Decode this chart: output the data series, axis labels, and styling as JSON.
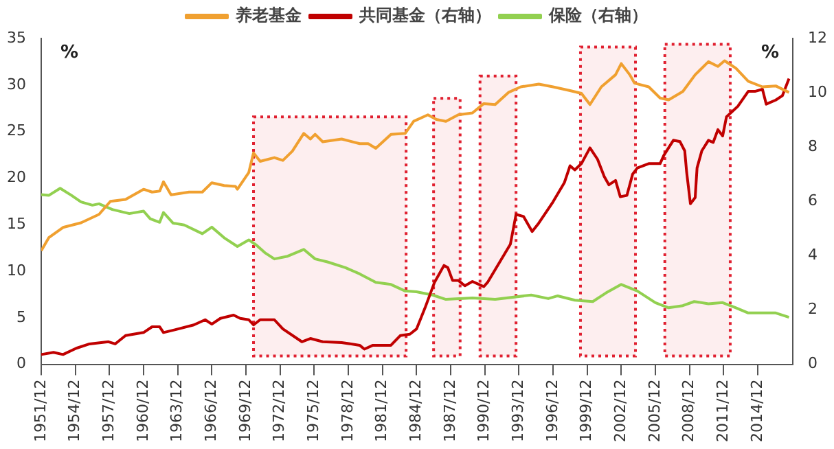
{
  "chart_data": {
    "type": "line",
    "ylabel": "%",
    "y2label": "%",
    "legend": "top",
    "grid": false,
    "marker": "none",
    "line_style": "solid",
    "xlim": [
      "1951-12",
      "2018-01"
    ],
    "xticks": [
      {
        "value": "1951-12",
        "label": "1951/12"
      },
      {
        "value": "1954-12",
        "label": "1954/12"
      },
      {
        "value": "1957-12",
        "label": "1957/12"
      },
      {
        "value": "1960-12",
        "label": "1960/12"
      },
      {
        "value": "1963-12",
        "label": "1963/12"
      },
      {
        "value": "1966-12",
        "label": "1966/12"
      },
      {
        "value": "1969-12",
        "label": "1969/12"
      },
      {
        "value": "1972-12",
        "label": "1972/12"
      },
      {
        "value": "1975-12",
        "label": "1975/12"
      },
      {
        "value": "1978-12",
        "label": "1978/12"
      },
      {
        "value": "1981-12",
        "label": "1981/12"
      },
      {
        "value": "1984-12",
        "label": "1984/12"
      },
      {
        "value": "1987-12",
        "label": "1987/12"
      },
      {
        "value": "1990-12",
        "label": "1990/12"
      },
      {
        "value": "1993-12",
        "label": "1993/12"
      },
      {
        "value": "1996-12",
        "label": "1996/12"
      },
      {
        "value": "1999-12",
        "label": "1999/12"
      },
      {
        "value": "2002-12",
        "label": "2002/12"
      },
      {
        "value": "2005-12",
        "label": "2005/12"
      },
      {
        "value": "2008-12",
        "label": "2008/12"
      },
      {
        "value": "2011-12",
        "label": "2011/12"
      },
      {
        "value": "2014-12",
        "label": "2014/12"
      }
    ],
    "ylim": [
      0,
      35
    ],
    "yticks": [
      0,
      5,
      10,
      15,
      20,
      25,
      30,
      35
    ],
    "y2lim": [
      0,
      12
    ],
    "y2ticks": [
      0,
      2,
      4,
      6,
      8,
      10,
      12
    ],
    "series": [
      {
        "name": "养老基金",
        "color": "#f0a030",
        "x": [
          "1951-12",
          "1952-08",
          "1953-11",
          "1955-06",
          "1957-01",
          "1958-01",
          "1959-05",
          "1960-12",
          "1961-09",
          "1962-05",
          "1962-09",
          "1963-05",
          "1964-12",
          "1966-02",
          "1966-12",
          "1968-01",
          "1969-01",
          "1969-03",
          "1970-03",
          "1970-08",
          "1971-03",
          "1972-06",
          "1973-03",
          "1974-01",
          "1975-01",
          "1975-08",
          "1976-01",
          "1976-09",
          "1978-05",
          "1979-12",
          "1980-09",
          "1981-05",
          "1982-09",
          "1983-12",
          "1984-09",
          "1985-12",
          "1986-09",
          "1987-07",
          "1988-08",
          "1989-11",
          "1990-11",
          "1991-11",
          "1993-01",
          "1994-02",
          "1995-09",
          "1996-12",
          "1998-06",
          "1999-06",
          "2000-03",
          "2001-03",
          "2002-06",
          "2002-12",
          "2003-09",
          "2004-02",
          "2005-05",
          "2006-05",
          "2007-02",
          "2008-05",
          "2009-06",
          "2010-08",
          "2011-06",
          "2012-01",
          "2013-01",
          "2014-02",
          "2015-05",
          "2016-07",
          "2017-09"
        ],
        "values": [
          12.2,
          13.6,
          14.7,
          15.2,
          16.1,
          17.5,
          17.7,
          18.8,
          18.5,
          18.6,
          19.6,
          18.2,
          18.5,
          18.5,
          19.5,
          19.2,
          19.1,
          18.8,
          20.6,
          22.7,
          21.8,
          22.2,
          21.9,
          22.9,
          24.8,
          24.2,
          24.7,
          23.9,
          24.2,
          23.7,
          23.7,
          23.2,
          24.7,
          24.8,
          26.1,
          26.8,
          26.3,
          26.1,
          26.8,
          27.0,
          28.0,
          27.9,
          29.2,
          29.8,
          30.1,
          29.8,
          29.4,
          29.1,
          27.9,
          29.8,
          31.1,
          32.3,
          31.1,
          30.2,
          29.8,
          28.6,
          28.4,
          29.3,
          31.1,
          32.5,
          32.0,
          32.6,
          31.8,
          30.4,
          29.8,
          29.9,
          29.2
        ]
      },
      {
        "name": "共同基金（右轴）",
        "color": "#c00000",
        "axis": "y2",
        "x": [
          "1951-12",
          "1953-01",
          "1953-11",
          "1955-01",
          "1956-03",
          "1957-11",
          "1958-06",
          "1959-05",
          "1960-12",
          "1961-09",
          "1962-05",
          "1962-09",
          "1963-09",
          "1965-05",
          "1966-05",
          "1966-12",
          "1967-09",
          "1968-11",
          "1969-06",
          "1970-03",
          "1970-08",
          "1971-03",
          "1972-06",
          "1973-03",
          "1974-11",
          "1975-08",
          "1976-09",
          "1978-05",
          "1979-12",
          "1980-05",
          "1981-02",
          "1982-09",
          "1983-07",
          "1984-05",
          "1984-12",
          "1985-09",
          "1986-07",
          "1987-05",
          "1987-09",
          "1988-02",
          "1988-08",
          "1989-03",
          "1989-11",
          "1990-06",
          "1990-11",
          "1991-03",
          "1992-03",
          "1993-03",
          "1993-09",
          "1994-05",
          "1995-02",
          "1995-09",
          "1996-12",
          "1997-12",
          "1998-06",
          "1998-11",
          "1999-06",
          "2000-03",
          "2000-11",
          "2001-06",
          "2001-11",
          "2002-06",
          "2002-11",
          "2003-06",
          "2003-12",
          "2004-05",
          "2005-05",
          "2006-05",
          "2006-09",
          "2007-07",
          "2008-02",
          "2008-07",
          "2008-09",
          "2009-01",
          "2009-06",
          "2009-08",
          "2010-01",
          "2010-08",
          "2011-01",
          "2011-06",
          "2011-11",
          "2012-03",
          "2013-03",
          "2014-02",
          "2014-09",
          "2015-05",
          "2015-09",
          "2016-07",
          "2017-02",
          "2017-09"
        ],
        "values": [
          0.36,
          0.44,
          0.36,
          0.59,
          0.75,
          0.83,
          0.75,
          1.06,
          1.17,
          1.38,
          1.38,
          1.17,
          1.27,
          1.45,
          1.64,
          1.48,
          1.69,
          1.81,
          1.69,
          1.64,
          1.45,
          1.64,
          1.64,
          1.3,
          0.83,
          0.95,
          0.83,
          0.8,
          0.7,
          0.56,
          0.7,
          0.7,
          1.06,
          1.11,
          1.3,
          2.08,
          3.02,
          3.64,
          3.56,
          3.09,
          3.09,
          2.89,
          3.05,
          2.94,
          2.86,
          3.02,
          3.72,
          4.42,
          5.52,
          5.44,
          4.89,
          5.2,
          5.98,
          6.69,
          7.31,
          7.16,
          7.39,
          7.97,
          7.55,
          6.92,
          6.61,
          6.77,
          6.17,
          6.22,
          7.0,
          7.23,
          7.39,
          7.39,
          7.7,
          8.25,
          8.2,
          7.86,
          7.08,
          5.91,
          6.14,
          7.23,
          7.86,
          8.25,
          8.17,
          8.64,
          8.41,
          9.11,
          9.5,
          10.05,
          10.05,
          10.13,
          9.58,
          9.73,
          9.89,
          10.52
        ]
      },
      {
        "name": "保险（右轴）",
        "color": "#92d050",
        "axis": "y2",
        "x": [
          "1951-12",
          "1952-08",
          "1953-08",
          "1954-08",
          "1955-06",
          "1956-06",
          "1957-01",
          "1958-03",
          "1959-09",
          "1960-12",
          "1961-07",
          "1962-05",
          "1962-09",
          "1963-07",
          "1964-07",
          "1966-02",
          "1966-12",
          "1968-01",
          "1969-03",
          "1970-03",
          "1970-11",
          "1971-08",
          "1972-06",
          "1973-08",
          "1975-01",
          "1976-01",
          "1977-02",
          "1978-09",
          "1979-12",
          "1981-05",
          "1982-09",
          "1983-12",
          "1984-12",
          "1986-05",
          "1987-07",
          "1989-11",
          "1991-11",
          "1995-01",
          "1996-07",
          "1997-05",
          "1998-11",
          "2000-06",
          "2001-08",
          "2002-12",
          "2004-05",
          "2005-12",
          "2007-02",
          "2008-05",
          "2009-05",
          "2010-08",
          "2011-11",
          "2013-01",
          "2014-02",
          "2016-07",
          "2017-09"
        ],
        "values": [
          6.25,
          6.22,
          6.48,
          6.22,
          5.98,
          5.86,
          5.91,
          5.7,
          5.55,
          5.64,
          5.36,
          5.23,
          5.59,
          5.2,
          5.13,
          4.81,
          5.05,
          4.66,
          4.34,
          4.58,
          4.39,
          4.11,
          3.88,
          3.98,
          4.23,
          3.88,
          3.77,
          3.56,
          3.33,
          3.02,
          2.94,
          2.7,
          2.67,
          2.55,
          2.39,
          2.44,
          2.39,
          2.55,
          2.42,
          2.52,
          2.36,
          2.31,
          2.63,
          2.94,
          2.7,
          2.27,
          2.08,
          2.16,
          2.31,
          2.23,
          2.27,
          2.08,
          1.89,
          1.89,
          1.73
        ]
      }
    ],
    "bands": [
      {
        "axis": "x",
        "from": "1970-08",
        "to": "1984-01",
        "color": "#e02030"
      },
      {
        "axis": "x",
        "from": "1986-06",
        "to": "1988-10",
        "color": "#e02030"
      },
      {
        "axis": "x",
        "from": "1990-07",
        "to": "1993-09",
        "color": "#e02030"
      },
      {
        "axis": "x",
        "from": "1999-05",
        "to": "2004-03",
        "color": "#e02030"
      },
      {
        "axis": "x",
        "from": "2006-10",
        "to": "2012-07",
        "color": "#e02030"
      }
    ]
  }
}
